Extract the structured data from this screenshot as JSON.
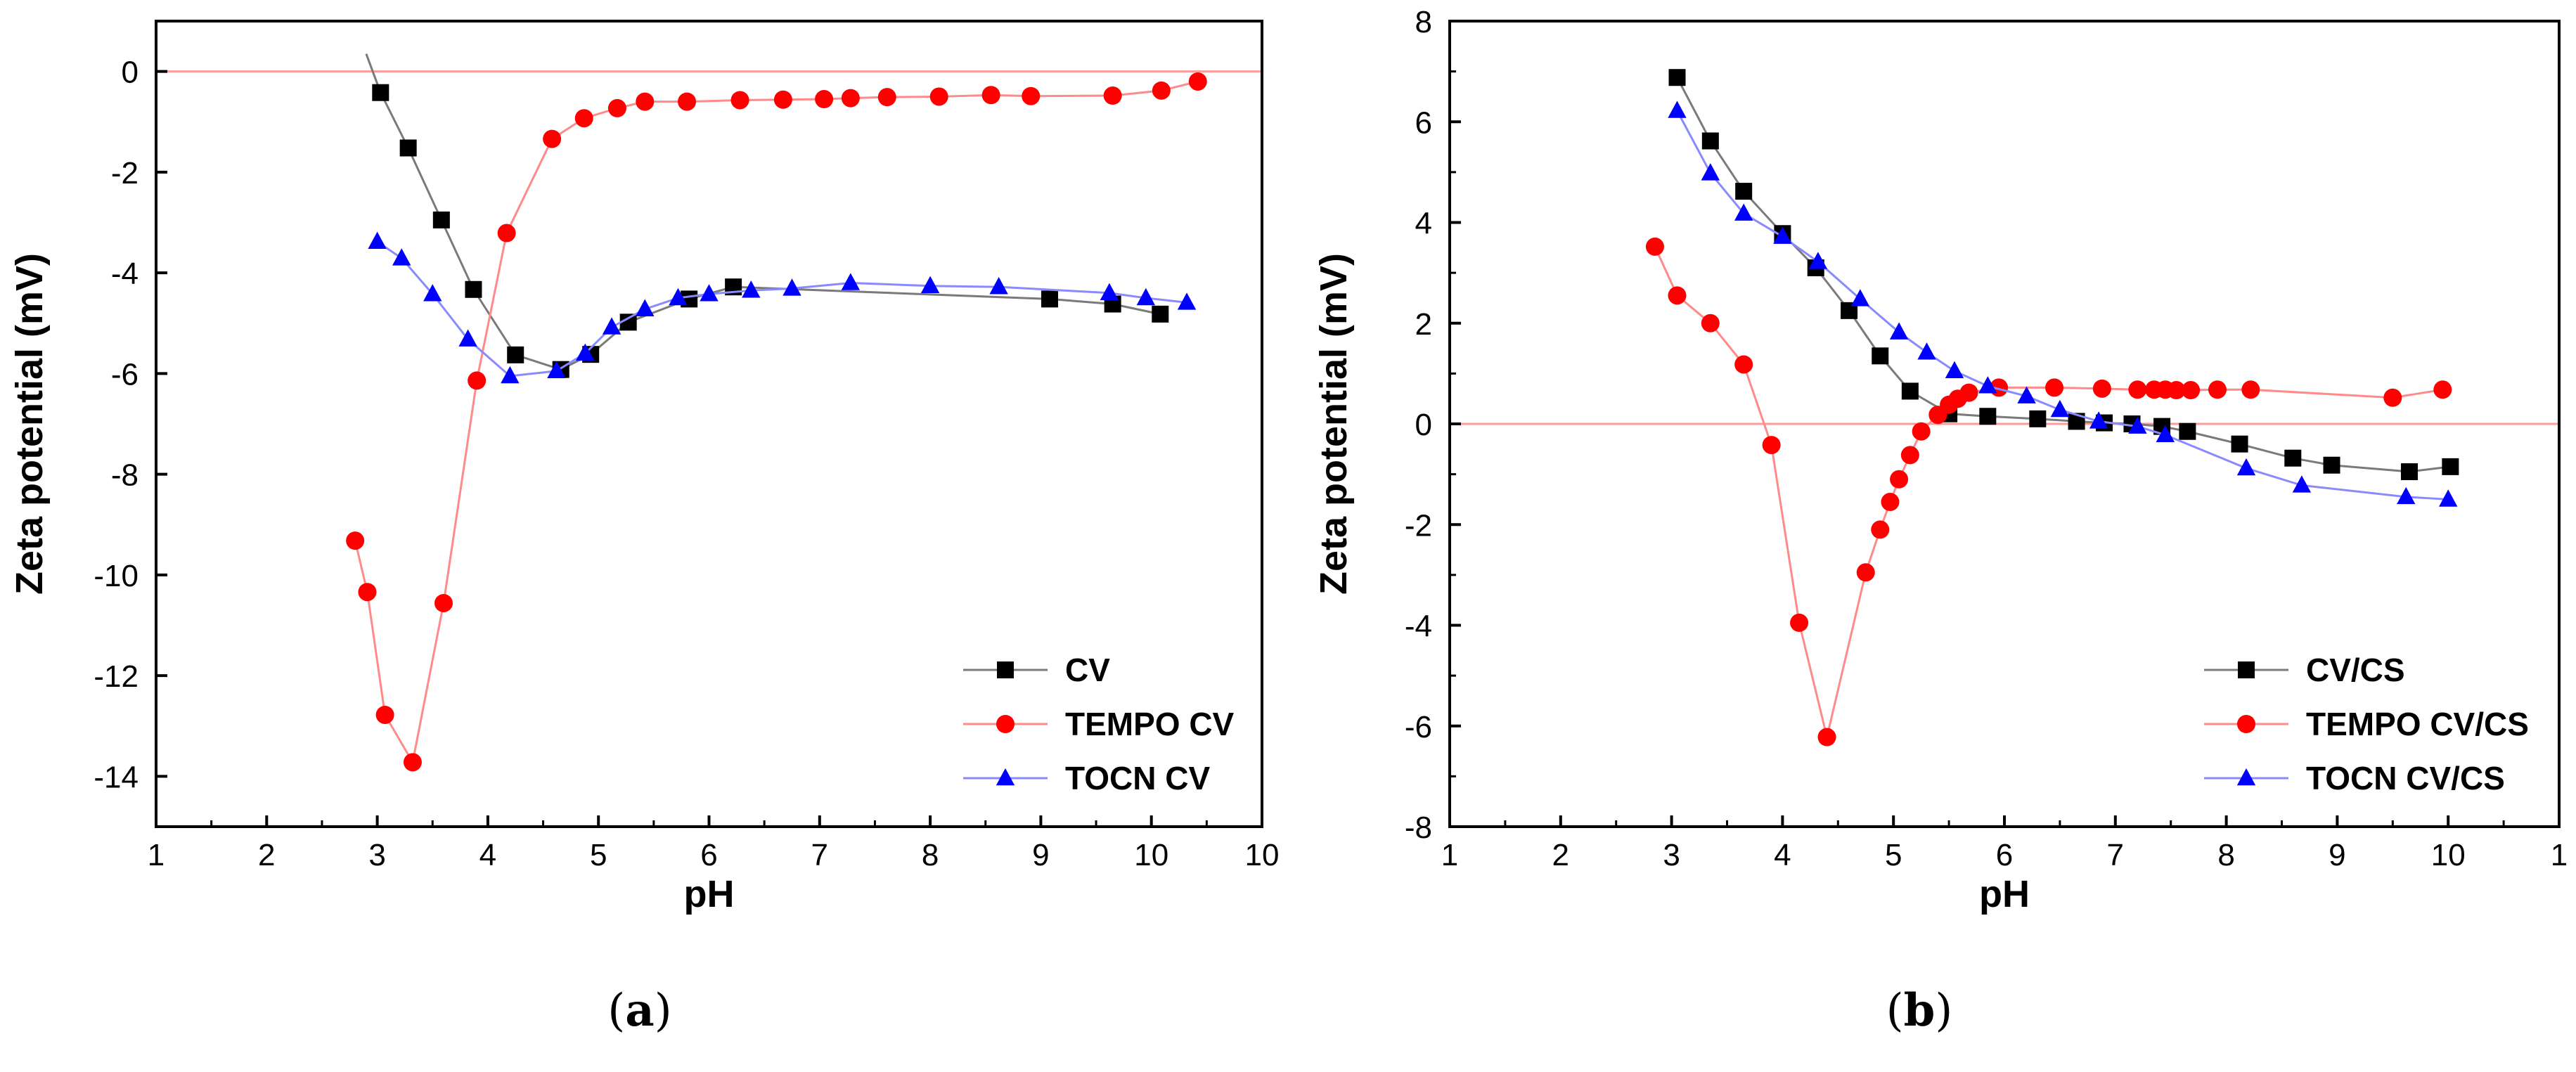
{
  "chart_data": [
    {
      "type": "line",
      "panel": "(a)",
      "panel_letter": "a",
      "xlabel": "pH",
      "ylabel": "Zeta potential (mV)",
      "xlim": [
        1,
        11
      ],
      "ylim": [
        -15,
        1
      ],
      "xticks": [
        "1",
        "2",
        "3",
        "4",
        "5",
        "6",
        "7",
        "8",
        "9",
        "10",
        "10"
      ],
      "yticks": [
        "0",
        "-2",
        "-4",
        "-6",
        "-8",
        "-10",
        "-12",
        "-14"
      ],
      "reference_line": {
        "y": 0,
        "color": "#ff9a9a"
      },
      "legend_position": "lower-right",
      "series": [
        {
          "name": "CV",
          "color": "#000000",
          "line_color": "#7a7a7a",
          "marker": "square",
          "x": [
            3.03,
            3.28,
            3.58,
            3.87,
            4.25,
            4.66,
            4.93,
            5.27,
            5.82,
            6.22,
            9.08,
            9.65,
            10.08
          ],
          "y": [
            -0.42,
            -1.52,
            -2.95,
            -4.33,
            -5.63,
            -5.92,
            -5.62,
            -4.98,
            -4.52,
            -4.28,
            -4.52,
            -4.62,
            -4.82
          ],
          "extra_line_start": [
            2.9,
            0.35
          ]
        },
        {
          "name": "TEMPO CV",
          "color": "#ff0000",
          "line_color": "#ff8a8a",
          "marker": "circle",
          "x": [
            2.8,
            2.91,
            3.07,
            3.32,
            3.6,
            3.9,
            4.17,
            4.58,
            4.87,
            5.17,
            5.42,
            5.8,
            6.28,
            6.67,
            7.04,
            7.28,
            7.61,
            8.08,
            8.55,
            8.91,
            9.65,
            10.09,
            10.42
          ],
          "y": [
            -9.32,
            -10.34,
            -12.78,
            -13.72,
            -10.56,
            -6.14,
            -3.21,
            -1.34,
            -0.93,
            -0.73,
            -0.6,
            -0.6,
            -0.57,
            -0.56,
            -0.55,
            -0.53,
            -0.51,
            -0.5,
            -0.47,
            -0.49,
            -0.48,
            -0.38,
            -0.2
          ]
        },
        {
          "name": "TOCN CV",
          "color": "#0000ff",
          "line_color": "#8a8aff",
          "marker": "triangle",
          "x": [
            3.0,
            3.22,
            3.5,
            3.82,
            4.2,
            4.62,
            4.88,
            5.12,
            5.42,
            5.72,
            6.0,
            6.38,
            6.75,
            7.28,
            8.0,
            8.62,
            9.62,
            9.95,
            10.32
          ],
          "y": [
            -3.38,
            -3.71,
            -4.42,
            -5.32,
            -6.05,
            -5.95,
            -5.6,
            -5.08,
            -4.72,
            -4.5,
            -4.42,
            -4.35,
            -4.31,
            -4.2,
            -4.26,
            -4.28,
            -4.4,
            -4.5,
            -4.59
          ]
        }
      ]
    },
    {
      "type": "line",
      "panel": "(b)",
      "panel_letter": "b",
      "xlabel": "pH",
      "ylabel": "Zeta potential (mV)",
      "xlim": [
        1,
        11
      ],
      "ylim": [
        -8,
        8
      ],
      "xticks": [
        "1",
        "2",
        "3",
        "4",
        "5",
        "6",
        "7",
        "8",
        "9",
        "10",
        "1"
      ],
      "yticks": [
        "8",
        "6",
        "4",
        "2",
        "0",
        "-2",
        "-4",
        "-6",
        "-8"
      ],
      "reference_line": {
        "y": 0,
        "color": "#ff9a9a"
      },
      "legend_position": "lower-right",
      "series": [
        {
          "name": "CV/CS",
          "color": "#000000",
          "line_color": "#7a7a7a",
          "marker": "square",
          "x": [
            3.05,
            3.35,
            3.65,
            4.0,
            4.3,
            4.6,
            4.88,
            5.15,
            5.5,
            5.85,
            6.3,
            6.65,
            6.9,
            7.15,
            7.42,
            7.65,
            8.12,
            8.6,
            8.95,
            9.65,
            10.02
          ],
          "y": [
            6.88,
            5.62,
            4.62,
            3.78,
            3.1,
            2.25,
            1.35,
            0.65,
            0.2,
            0.15,
            0.1,
            0.05,
            0.02,
            0.0,
            -0.05,
            -0.15,
            -0.4,
            -0.68,
            -0.82,
            -0.95,
            -0.85
          ]
        },
        {
          "name": "TEMPO CV/CS",
          "color": "#ff0000",
          "line_color": "#ff8a8a",
          "marker": "circle",
          "x": [
            2.85,
            3.05,
            3.35,
            3.65,
            3.9,
            4.15,
            4.4,
            4.75,
            4.88,
            4.97,
            5.05,
            5.15,
            5.25,
            5.4,
            5.5,
            5.58,
            5.68,
            5.95,
            6.45,
            6.88,
            7.2,
            7.35,
            7.45,
            7.55,
            7.68,
            7.92,
            8.22,
            9.5,
            9.95
          ],
          "y": [
            3.52,
            2.55,
            2.0,
            1.18,
            -0.42,
            -3.95,
            -6.22,
            -2.95,
            -2.1,
            -1.55,
            -1.1,
            -0.62,
            -0.15,
            0.18,
            0.38,
            0.5,
            0.62,
            0.72,
            0.72,
            0.7,
            0.68,
            0.68,
            0.68,
            0.67,
            0.67,
            0.68,
            0.68,
            0.52,
            0.68
          ]
        },
        {
          "name": "TOCN CV/CS",
          "color": "#0000ff",
          "line_color": "#8a8aff",
          "marker": "triangle",
          "x": [
            3.05,
            3.35,
            3.65,
            4.0,
            4.32,
            4.7,
            5.05,
            5.3,
            5.55,
            5.85,
            6.2,
            6.5,
            6.85,
            7.2,
            7.45,
            8.18,
            8.68,
            9.62,
            10.0
          ],
          "y": [
            6.22,
            4.98,
            4.18,
            3.72,
            3.22,
            2.48,
            1.82,
            1.42,
            1.05,
            0.75,
            0.55,
            0.28,
            0.05,
            -0.05,
            -0.22,
            -0.88,
            -1.22,
            -1.45,
            -1.5
          ]
        }
      ]
    }
  ]
}
